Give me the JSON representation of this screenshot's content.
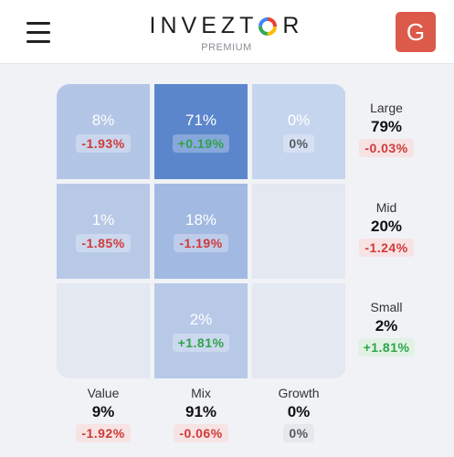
{
  "header": {
    "brand_before": "INVEZT",
    "brand_after": "R",
    "brand_sub": "PREMIUM",
    "avatar_letter": "G"
  },
  "grid": {
    "cells": [
      {
        "pct": "8%",
        "change": "-1.93%",
        "sign": "neg",
        "color": "#b4c6e6"
      },
      {
        "pct": "71%",
        "change": "+0.19%",
        "sign": "pos",
        "color": "#5b86cc"
      },
      {
        "pct": "0%",
        "change": "0%",
        "sign": "zero",
        "color": "#c6d5ee"
      },
      {
        "pct": "1%",
        "change": "-1.85%",
        "sign": "neg",
        "color": "#b8c9e8"
      },
      {
        "pct": "18%",
        "change": "-1.19%",
        "sign": "neg",
        "color": "#a2b9e2"
      },
      {
        "pct": "",
        "change": "",
        "sign": "none",
        "color": "#e3e8f1"
      },
      {
        "pct": "",
        "change": "",
        "sign": "none",
        "color": "#e3e8f1"
      },
      {
        "pct": "2%",
        "change": "+1.81%",
        "sign": "pos",
        "color": "#b8c9e8"
      },
      {
        "pct": "",
        "change": "",
        "sign": "none",
        "color": "#e3e8f1"
      }
    ]
  },
  "size": [
    {
      "name": "Large",
      "pct": "79%",
      "change": "-0.03%",
      "sign": "neg"
    },
    {
      "name": "Mid",
      "pct": "20%",
      "change": "-1.24%",
      "sign": "neg"
    },
    {
      "name": "Small",
      "pct": "2%",
      "change": "+1.81%",
      "sign": "pos"
    }
  ],
  "style": [
    {
      "name": "Value",
      "pct": "9%",
      "change": "-1.92%",
      "sign": "neg"
    },
    {
      "name": "Mix",
      "pct": "91%",
      "change": "-0.06%",
      "sign": "neg"
    },
    {
      "name": "Growth",
      "pct": "0%",
      "change": "0%",
      "sign": "zero"
    }
  ],
  "icons": {
    "menu": "hamburger-icon",
    "brand_o": "multicolor-ring-icon"
  }
}
